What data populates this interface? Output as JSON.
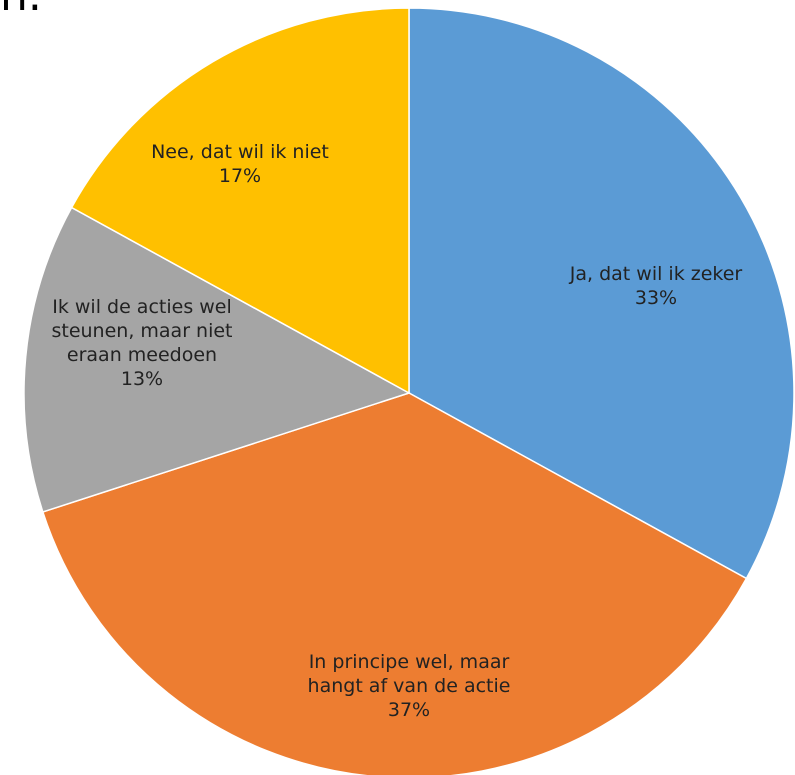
{
  "top_text_fragment": "n.",
  "chart_data": {
    "type": "pie",
    "title": "",
    "slices": [
      {
        "label_lines": [
          "Ja, dat wil ik zeker"
        ],
        "percent_label": "33%",
        "value": 33,
        "color": "#5B9BD5"
      },
      {
        "label_lines": [
          "In principe wel, maar",
          "hangt af van de actie"
        ],
        "percent_label": "37%",
        "value": 37,
        "color": "#ED7D31"
      },
      {
        "label_lines": [
          "Ik wil de acties wel",
          "steunen, maar niet",
          "eraan meedoen"
        ],
        "percent_label": "13%",
        "value": 13,
        "color": "#A5A5A5"
      },
      {
        "label_lines": [
          "Nee, dat wil ik niet"
        ],
        "percent_label": "17%",
        "value": 17,
        "color": "#FFC000"
      }
    ],
    "start_angle": "top (12 o'clock)",
    "direction": "clockwise",
    "legend": "none (labels inside slices)"
  }
}
